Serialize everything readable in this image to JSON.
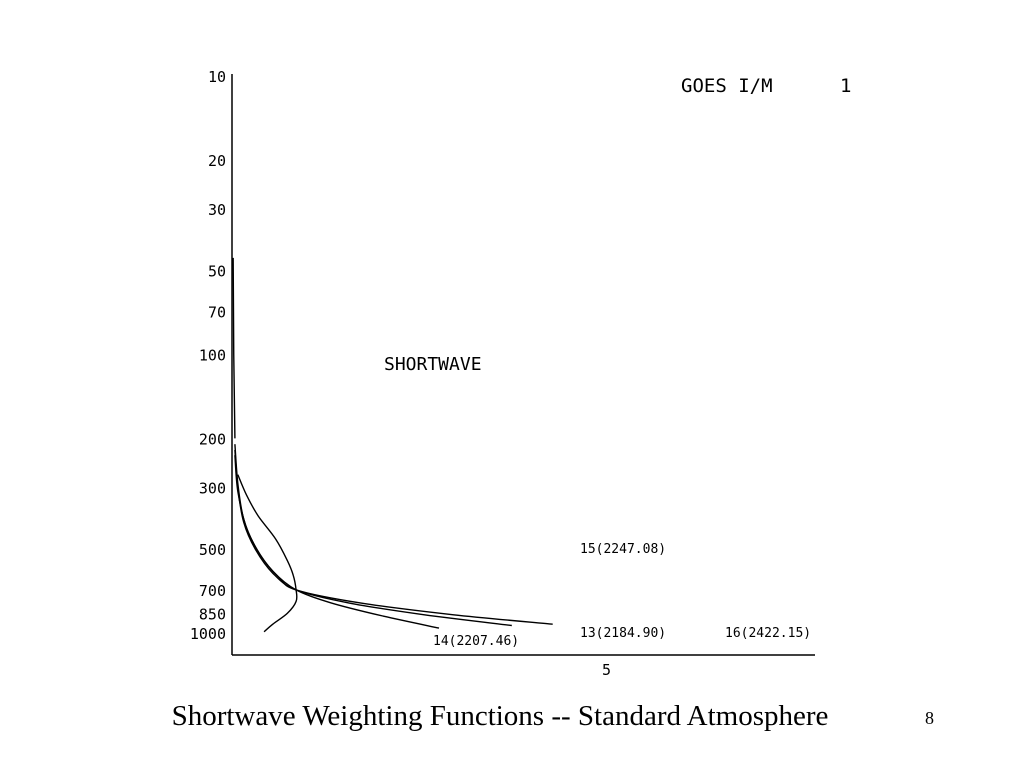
{
  "slide": {
    "caption": "Shortwave Weighting Functions -- Standard Atmosphere",
    "page_number": "8"
  },
  "chart_data": {
    "type": "line",
    "title": "GOES I/M",
    "title_suffix": "1",
    "annotation": "SHORTWAVE",
    "y_axis": {
      "scale": "log",
      "inverted": true,
      "unit": "",
      "range": [
        10,
        1000
      ],
      "ticks": [
        10,
        20,
        30,
        50,
        70,
        100,
        200,
        300,
        500,
        700,
        850,
        1000
      ],
      "tick_labels": [
        "10",
        "20",
        "30",
        "50",
        "70",
        "100",
        "200",
        "300",
        "500",
        "700",
        "850",
        "1000"
      ]
    },
    "x_axis": {
      "range": [
        0,
        10
      ],
      "ticks": [
        5
      ],
      "tick_labels": [
        "5"
      ]
    },
    "grid": false,
    "series": [
      {
        "name": "15(2247.08)",
        "points": [
          [
            0.1,
            270
          ],
          [
            0.25,
            320
          ],
          [
            0.45,
            380
          ],
          [
            0.75,
            460
          ],
          [
            0.95,
            550
          ],
          [
            1.05,
            620
          ],
          [
            1.1,
            700
          ],
          [
            1.1,
            770
          ],
          [
            0.95,
            850
          ],
          [
            0.7,
            930
          ],
          [
            0.55,
            990
          ]
        ]
      },
      {
        "name": "14(2207.46)",
        "points": [
          [
            0.05,
            210
          ],
          [
            0.1,
            290
          ],
          [
            0.2,
            390
          ],
          [
            0.4,
            490
          ],
          [
            0.7,
            600
          ],
          [
            1.1,
            700
          ],
          [
            1.7,
            780
          ],
          [
            2.6,
            870
          ],
          [
            3.55,
            960
          ]
        ]
      },
      {
        "name": "13(2184.90)",
        "points": [
          [
            0.05,
            220
          ],
          [
            0.1,
            300
          ],
          [
            0.2,
            400
          ],
          [
            0.4,
            500
          ],
          [
            0.7,
            610
          ],
          [
            1.1,
            700
          ],
          [
            2.0,
            780
          ],
          [
            3.3,
            860
          ],
          [
            4.8,
            940
          ]
        ]
      },
      {
        "name": "16(2422.15)",
        "points": [
          [
            0.05,
            230
          ],
          [
            0.1,
            310
          ],
          [
            0.25,
            420
          ],
          [
            0.5,
            530
          ],
          [
            0.8,
            630
          ],
          [
            1.1,
            700
          ],
          [
            2.2,
            780
          ],
          [
            3.8,
            860
          ],
          [
            5.5,
            930
          ]
        ]
      }
    ],
    "label_positions": {
      "15(2247.08)": "middle-right",
      "14(2207.46)": "bottom-center",
      "13(2184.90)": "bottom-right",
      "16(2422.15)": "bottom-far-right"
    }
  }
}
